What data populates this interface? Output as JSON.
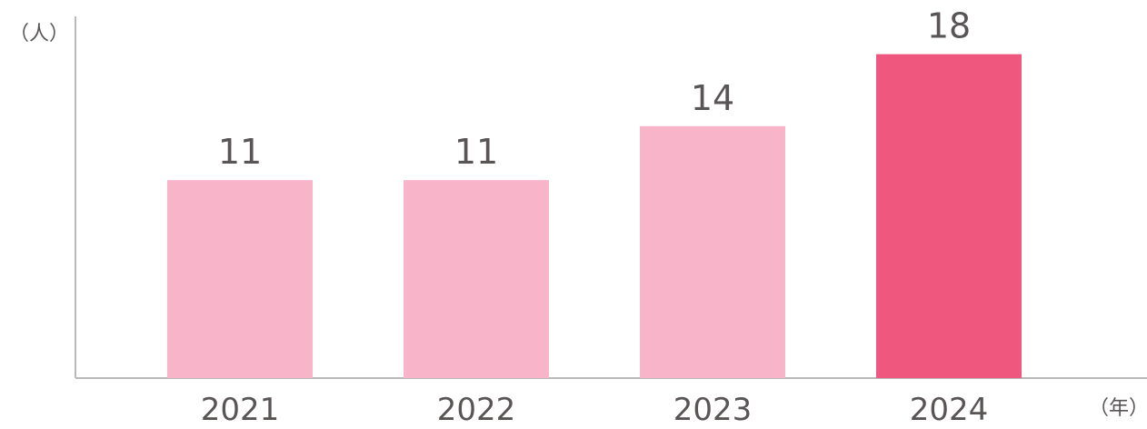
{
  "chart_data": {
    "type": "bar",
    "categories": [
      "2021",
      "2022",
      "2023",
      "2024"
    ],
    "values": [
      11,
      11,
      14,
      18
    ],
    "value_labels": [
      "11",
      "11",
      "14",
      "18"
    ],
    "y_unit": "（人）",
    "x_unit": "（年）",
    "ylim": [
      0,
      20
    ],
    "grid": false,
    "colors": {
      "normal": "#f8b4c8",
      "highlight": "#ef577e",
      "axis": "#b9b9b9",
      "text": "#595555"
    },
    "highlight_category": "2024"
  }
}
